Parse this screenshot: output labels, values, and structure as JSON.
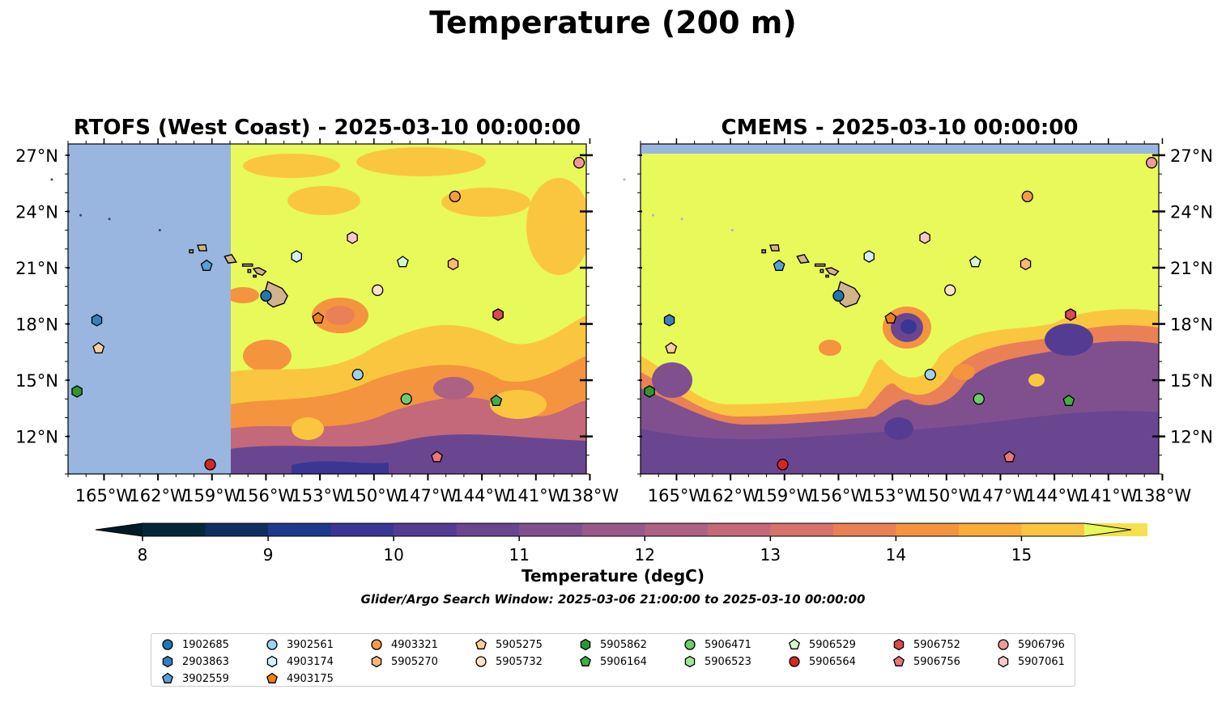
{
  "title": "Temperature (200 m)",
  "panels": [
    {
      "title": "RTOFS (West Coast) - 2025-03-10 00:00:00"
    },
    {
      "title": "CMEMS - 2025-03-10 00:00:00"
    }
  ],
  "x_ticks": [
    "165°W",
    "162°W",
    "159°W",
    "156°W",
    "153°W",
    "150°W",
    "147°W",
    "144°W",
    "141°W",
    "138°W"
  ],
  "x_tick_lons": [
    -165,
    -162,
    -159,
    -156,
    -153,
    -150,
    -147,
    -144,
    -141,
    -138
  ],
  "y_ticks": [
    "27°N",
    "24°N",
    "21°N",
    "18°N",
    "15°N",
    "12°N"
  ],
  "y_tick_lats": [
    27,
    24,
    21,
    18,
    15,
    12
  ],
  "map_extent": {
    "lon": [
      -167,
      -138.2
    ],
    "lat": [
      10,
      27.6
    ]
  },
  "colorbar": {
    "label": "Temperature (degC)",
    "min": 8,
    "max": 15.5,
    "step": 0.5,
    "ticks": [
      "8",
      "9",
      "10",
      "11",
      "12",
      "13",
      "14",
      "15"
    ],
    "tick_values": [
      8,
      9,
      10,
      11,
      12,
      13,
      14,
      15
    ],
    "colors": [
      "#04283a",
      "#112e63",
      "#1e3a8a",
      "#3b3694",
      "#553c93",
      "#6a4691",
      "#80508e",
      "#97598a",
      "#ad6183",
      "#c3697a",
      "#d8726c",
      "#e98056",
      "#f4943e",
      "#faad37",
      "#fbc63f",
      "#f5e04d"
    ],
    "under_color": "#021a26",
    "over_color": "#e8f95a",
    "land_color": "#d2b48c",
    "nodata_color": "#98b6e0"
  },
  "search_window": "Glider/Argo Search Window: 2025-03-06 21:00:00 to 2025-03-10 00:00:00",
  "floats": [
    {
      "id": "1902685",
      "marker": "circle",
      "color": "#1f77b4",
      "lon": -156.0,
      "lat": 19.5
    },
    {
      "id": "2903863",
      "marker": "hexagon",
      "color": "#3a7fbd",
      "lon": -165.4,
      "lat": 18.2
    },
    {
      "id": "3902559",
      "marker": "pentagon",
      "color": "#5aa0d8",
      "lon": -159.3,
      "lat": 21.1
    },
    {
      "id": "3902561",
      "marker": "circle",
      "color": "#9fd1f0",
      "lon": -150.9,
      "lat": 15.3
    },
    {
      "id": "4903174",
      "marker": "hexagon",
      "color": "#d7eefa",
      "lon": -154.3,
      "lat": 21.6
    },
    {
      "id": "4903175",
      "marker": "pentagon",
      "color": "#f07f18",
      "lon": -153.1,
      "lat": 18.3
    },
    {
      "id": "4903321",
      "marker": "circle",
      "color": "#f59a48",
      "lon": -145.5,
      "lat": 24.8
    },
    {
      "id": "5905270",
      "marker": "hexagon",
      "color": "#f8b97a",
      "lon": -145.6,
      "lat": 21.2
    },
    {
      "id": "5905275",
      "marker": "pentagon",
      "color": "#fbcf9c",
      "lon": -165.3,
      "lat": 16.7
    },
    {
      "id": "5905732",
      "marker": "circle",
      "color": "#fde2c8",
      "lon": -149.8,
      "lat": 19.8
    },
    {
      "id": "5905862",
      "marker": "hexagon",
      "color": "#2a9a30",
      "lon": -166.5,
      "lat": 14.4
    },
    {
      "id": "5906164",
      "marker": "pentagon",
      "color": "#40b040",
      "lon": -143.2,
      "lat": 13.9
    },
    {
      "id": "5906471",
      "marker": "circle",
      "color": "#6fcc6b",
      "lon": -148.2,
      "lat": 14.0
    },
    {
      "id": "5906523",
      "marker": "hexagon",
      "color": "#a4e49a",
      "lon": -143.1,
      "lat": 18.5
    },
    {
      "id": "5906529",
      "marker": "pentagon",
      "color": "#d6f7d0",
      "lon": -148.4,
      "lat": 21.3
    },
    {
      "id": "5906564",
      "marker": "circle",
      "color": "#d62728",
      "lon": -159.1,
      "lat": 10.5
    },
    {
      "id": "5906752",
      "marker": "hexagon",
      "color": "#dd4a4a",
      "lon": -143.1,
      "lat": 18.5
    },
    {
      "id": "5906756",
      "marker": "pentagon",
      "color": "#e87878",
      "lon": -146.5,
      "lat": 10.9
    },
    {
      "id": "5906796",
      "marker": "circle",
      "color": "#ef9a9a",
      "lon": -138.6,
      "lat": 26.6
    },
    {
      "id": "5907061",
      "marker": "hexagon",
      "color": "#f8c8cc",
      "lon": -151.2,
      "lat": 22.6
    }
  ]
}
